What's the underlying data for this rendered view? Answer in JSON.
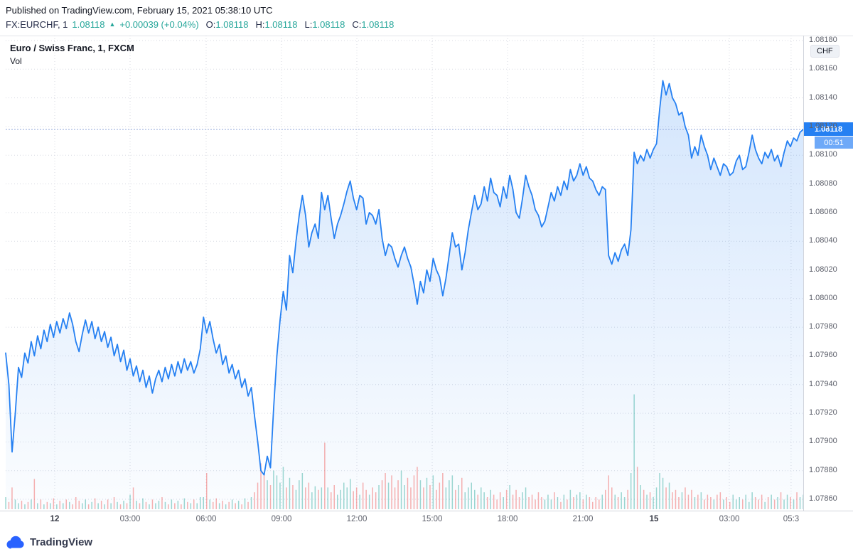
{
  "header": {
    "published": "Published on TradingView.com, February 15, 2021 05:38:10 UTC",
    "symbol": "FX:EURCHF, 1",
    "last": "1.08118",
    "arrow": "▲",
    "change": "+0.00039 (+0.04%)",
    "o_label": "O:",
    "o_value": "1.08118",
    "h_label": "H:",
    "h_value": "1.08118",
    "l_label": "L:",
    "l_value": "1.08118",
    "c_label": "C:",
    "c_value": "1.08118"
  },
  "legend": {
    "title": "Euro / Swiss Franc, 1, FXCM",
    "vol": "Vol"
  },
  "axis": {
    "currency": "CHF",
    "price_badge": "1.08118",
    "countdown": "00:51"
  },
  "footer": {
    "brand": "TradingView"
  },
  "colors": {
    "line": "#2580f2",
    "area_top": "rgba(37,128,242,0.20)",
    "area_bottom": "rgba(37,128,242,0.02)",
    "price_badge_bg": "#2580f2",
    "countdown_bg": "#6ea9f8",
    "up_text": "#26a69a",
    "vol_up": "rgba(38,166,154,0.45)",
    "vol_down": "rgba(239,83,80,0.45)",
    "grid": "#d7dae2",
    "axis_border": "#d1d4dc",
    "axis_text": "#5d606b",
    "last_line": "#8fa6d9",
    "brand_blue": "#2962ff"
  },
  "chart_data": {
    "type": "area",
    "title": "Euro / Swiss Franc, 1, FXCM",
    "symbol": "EURCHF",
    "interval": "1",
    "exchange": "FXCM",
    "last_price": 1.08118,
    "change": 0.00039,
    "change_pct": 0.04,
    "ylim": [
      1.07853,
      1.08185
    ],
    "grid": true,
    "y_ticks": [
      "1.08180",
      "1.08160",
      "1.08140",
      "1.08120",
      "1.08100",
      "1.08080",
      "1.08060",
      "1.08040",
      "1.08020",
      "1.08000",
      "1.07980",
      "1.07960",
      "1.07940",
      "1.07920",
      "1.07900",
      "1.07880",
      "1.07860"
    ],
    "x_ticks": [
      {
        "f": 0.0615,
        "label": "12",
        "day": true
      },
      {
        "f": 0.156,
        "label": "03:00",
        "day": false
      },
      {
        "f": 0.2513,
        "label": "06:00",
        "day": false
      },
      {
        "f": 0.3458,
        "label": "09:00",
        "day": false
      },
      {
        "f": 0.4403,
        "label": "12:00",
        "day": false
      },
      {
        "f": 0.5348,
        "label": "15:00",
        "day": false
      },
      {
        "f": 0.6293,
        "label": "18:00",
        "day": false
      },
      {
        "f": 0.7238,
        "label": "21:00",
        "day": false
      },
      {
        "f": 0.8128,
        "label": "15",
        "day": true
      },
      {
        "f": 0.9073,
        "label": "03:00",
        "day": false
      },
      {
        "f": 0.9848,
        "label": "05:3",
        "day": false
      }
    ],
    "price": [
      1.07962,
      1.0794,
      1.07893,
      1.0792,
      1.07952,
      1.07945,
      1.07962,
      1.07955,
      1.0797,
      1.0796,
      1.07974,
      1.07965,
      1.07978,
      1.0797,
      1.07982,
      1.07973,
      1.07984,
      1.07976,
      1.07986,
      1.07979,
      1.0799,
      1.07982,
      1.0797,
      1.07963,
      1.07975,
      1.07985,
      1.07976,
      1.07984,
      1.07972,
      1.0798,
      1.0797,
      1.07977,
      1.07966,
      1.07973,
      1.0796,
      1.07968,
      1.07956,
      1.07964,
      1.0795,
      1.07958,
      1.07946,
      1.07953,
      1.07942,
      1.0795,
      1.07938,
      1.07946,
      1.07934,
      1.07944,
      1.0795,
      1.07942,
      1.07952,
      1.07944,
      1.07954,
      1.07946,
      1.07956,
      1.07948,
      1.07958,
      1.0795,
      1.07956,
      1.07948,
      1.07954,
      1.07965,
      1.07987,
      1.07976,
      1.07984,
      1.07972,
      1.07962,
      1.07968,
      1.07954,
      1.0796,
      1.07948,
      1.07954,
      1.07944,
      1.0795,
      1.07938,
      1.07944,
      1.07932,
      1.07938,
      1.07918,
      1.079,
      1.0788,
      1.07877,
      1.0789,
      1.07882,
      1.07924,
      1.0796,
      1.07985,
      1.08005,
      1.07992,
      1.0803,
      1.08018,
      1.0804,
      1.08058,
      1.08072,
      1.08058,
      1.08036,
      1.08046,
      1.08052,
      1.08042,
      1.08074,
      1.08062,
      1.08072,
      1.08056,
      1.08042,
      1.08052,
      1.08058,
      1.08066,
      1.08075,
      1.08082,
      1.0807,
      1.08062,
      1.08072,
      1.0807,
      1.08052,
      1.0806,
      1.08058,
      1.08052,
      1.08062,
      1.08042,
      1.0803,
      1.08038,
      1.08036,
      1.08028,
      1.08022,
      1.0803,
      1.08036,
      1.08028,
      1.08022,
      1.0801,
      1.07996,
      1.08012,
      1.08004,
      1.0802,
      1.08012,
      1.08028,
      1.0802,
      1.08015,
      1.08002,
      1.08014,
      1.0803,
      1.08046,
      1.08036,
      1.08038,
      1.0802,
      1.08032,
      1.08048,
      1.0806,
      1.08072,
      1.08062,
      1.08066,
      1.08078,
      1.08068,
      1.08084,
      1.08074,
      1.08072,
      1.08064,
      1.08078,
      1.0807,
      1.08086,
      1.08076,
      1.0806,
      1.08056,
      1.0807,
      1.08086,
      1.08078,
      1.08072,
      1.08062,
      1.08058,
      1.0805,
      1.08054,
      1.08064,
      1.08074,
      1.08068,
      1.08078,
      1.08072,
      1.08082,
      1.08076,
      1.0809,
      1.08082,
      1.08086,
      1.08094,
      1.08086,
      1.08092,
      1.08084,
      1.08082,
      1.08076,
      1.08072,
      1.08078,
      1.08076,
      1.0803,
      1.08024,
      1.08032,
      1.08026,
      1.08034,
      1.08038,
      1.0803,
      1.08048,
      1.08102,
      1.08094,
      1.081,
      1.08096,
      1.08104,
      1.08098,
      1.08104,
      1.08108,
      1.08132,
      1.08152,
      1.08142,
      1.0815,
      1.0814,
      1.08136,
      1.08128,
      1.0813,
      1.0812,
      1.08114,
      1.08098,
      1.08106,
      1.081,
      1.08114,
      1.08106,
      1.081,
      1.0809,
      1.08098,
      1.08092,
      1.08086,
      1.08094,
      1.08092,
      1.08086,
      1.08088,
      1.08096,
      1.081,
      1.0809,
      1.08092,
      1.08102,
      1.08114,
      1.08104,
      1.08098,
      1.08094,
      1.08102,
      1.08098,
      1.08104,
      1.08096,
      1.081,
      1.08092,
      1.08102,
      1.0811,
      1.08106,
      1.08112,
      1.0811,
      1.08116,
      1.08118
    ],
    "volume": [
      0.1,
      0.06,
      0.18,
      0.08,
      0.05,
      0.07,
      0.04,
      0.06,
      0.08,
      0.25,
      0.05,
      0.08,
      0.04,
      0.06,
      0.05,
      0.09,
      0.04,
      0.07,
      0.05,
      0.08,
      0.06,
      0.04,
      0.1,
      0.07,
      0.05,
      0.08,
      0.04,
      0.06,
      0.09,
      0.05,
      0.07,
      0.04,
      0.08,
      0.05,
      0.1,
      0.06,
      0.04,
      0.07,
      0.05,
      0.12,
      0.18,
      0.07,
      0.05,
      0.09,
      0.06,
      0.04,
      0.08,
      0.05,
      0.07,
      0.1,
      0.06,
      0.04,
      0.08,
      0.05,
      0.07,
      0.04,
      0.09,
      0.06,
      0.05,
      0.08,
      0.05,
      0.1,
      0.1,
      0.3,
      0.08,
      0.06,
      0.09,
      0.05,
      0.07,
      0.04,
      0.06,
      0.08,
      0.05,
      0.07,
      0.04,
      0.09,
      0.06,
      0.1,
      0.14,
      0.22,
      0.38,
      0.3,
      0.24,
      0.2,
      0.32,
      0.28,
      0.22,
      0.35,
      0.18,
      0.26,
      0.2,
      0.16,
      0.24,
      0.3,
      0.18,
      0.22,
      0.14,
      0.19,
      0.16,
      0.18,
      0.55,
      0.18,
      0.14,
      0.2,
      0.12,
      0.16,
      0.22,
      0.18,
      0.25,
      0.15,
      0.18,
      0.12,
      0.22,
      0.16,
      0.12,
      0.18,
      0.14,
      0.2,
      0.24,
      0.3,
      0.22,
      0.28,
      0.18,
      0.24,
      0.32,
      0.2,
      0.26,
      0.18,
      0.28,
      0.35,
      0.24,
      0.18,
      0.26,
      0.2,
      0.28,
      0.16,
      0.22,
      0.3,
      0.18,
      0.24,
      0.28,
      0.16,
      0.2,
      0.26,
      0.14,
      0.18,
      0.22,
      0.16,
      0.12,
      0.18,
      0.14,
      0.1,
      0.16,
      0.12,
      0.08,
      0.14,
      0.1,
      0.16,
      0.2,
      0.12,
      0.16,
      0.1,
      0.14,
      0.18,
      0.1,
      0.12,
      0.08,
      0.14,
      0.1,
      0.08,
      0.12,
      0.08,
      0.14,
      0.1,
      0.06,
      0.12,
      0.08,
      0.16,
      0.1,
      0.12,
      0.14,
      0.08,
      0.12,
      0.1,
      0.06,
      0.1,
      0.08,
      0.12,
      0.16,
      0.28,
      0.18,
      0.12,
      0.1,
      0.14,
      0.1,
      0.16,
      0.3,
      0.95,
      0.35,
      0.2,
      0.16,
      0.12,
      0.14,
      0.1,
      0.18,
      0.3,
      0.26,
      0.18,
      0.22,
      0.14,
      0.16,
      0.1,
      0.14,
      0.18,
      0.12,
      0.16,
      0.1,
      0.12,
      0.14,
      0.08,
      0.12,
      0.1,
      0.08,
      0.12,
      0.14,
      0.08,
      0.1,
      0.06,
      0.12,
      0.08,
      0.1,
      0.08,
      0.12,
      0.06,
      0.14,
      0.1,
      0.08,
      0.12,
      0.06,
      0.1,
      0.12,
      0.08,
      0.1,
      0.14,
      0.08,
      0.12,
      0.1,
      0.08,
      0.14,
      0.1,
      0.12
    ]
  }
}
